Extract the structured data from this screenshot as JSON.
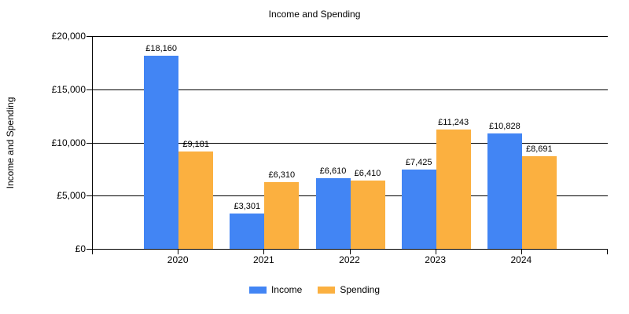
{
  "title": "Income and Spending",
  "chart_data": {
    "type": "bar",
    "title": "Income and Spending",
    "xlabel": "",
    "ylabel": "Income and Spending",
    "categories": [
      "2020",
      "2021",
      "2022",
      "2023",
      "2024"
    ],
    "series": [
      {
        "name": "Income",
        "color": "#4285F4",
        "values": [
          18160,
          3301,
          6610,
          7425,
          10828
        ],
        "labels": [
          "£18,160",
          "£3,301",
          "£6,610",
          "£7,425",
          "£10,828"
        ]
      },
      {
        "name": "Spending",
        "color": "#FBB040",
        "values": [
          9181,
          6310,
          6410,
          11243,
          8691
        ],
        "labels": [
          "£9,181",
          "£6,310",
          "£6,410",
          "£11,243",
          "£8,691"
        ]
      }
    ],
    "ylim": [
      0,
      20000
    ],
    "ytick_step": 5000,
    "ytick_labels": [
      "£0",
      "£5,000",
      "£10,000",
      "£15,000",
      "£20,000"
    ],
    "grid": true,
    "legend_position": "bottom",
    "axis_color": "#000000",
    "text_color": "#000000"
  }
}
